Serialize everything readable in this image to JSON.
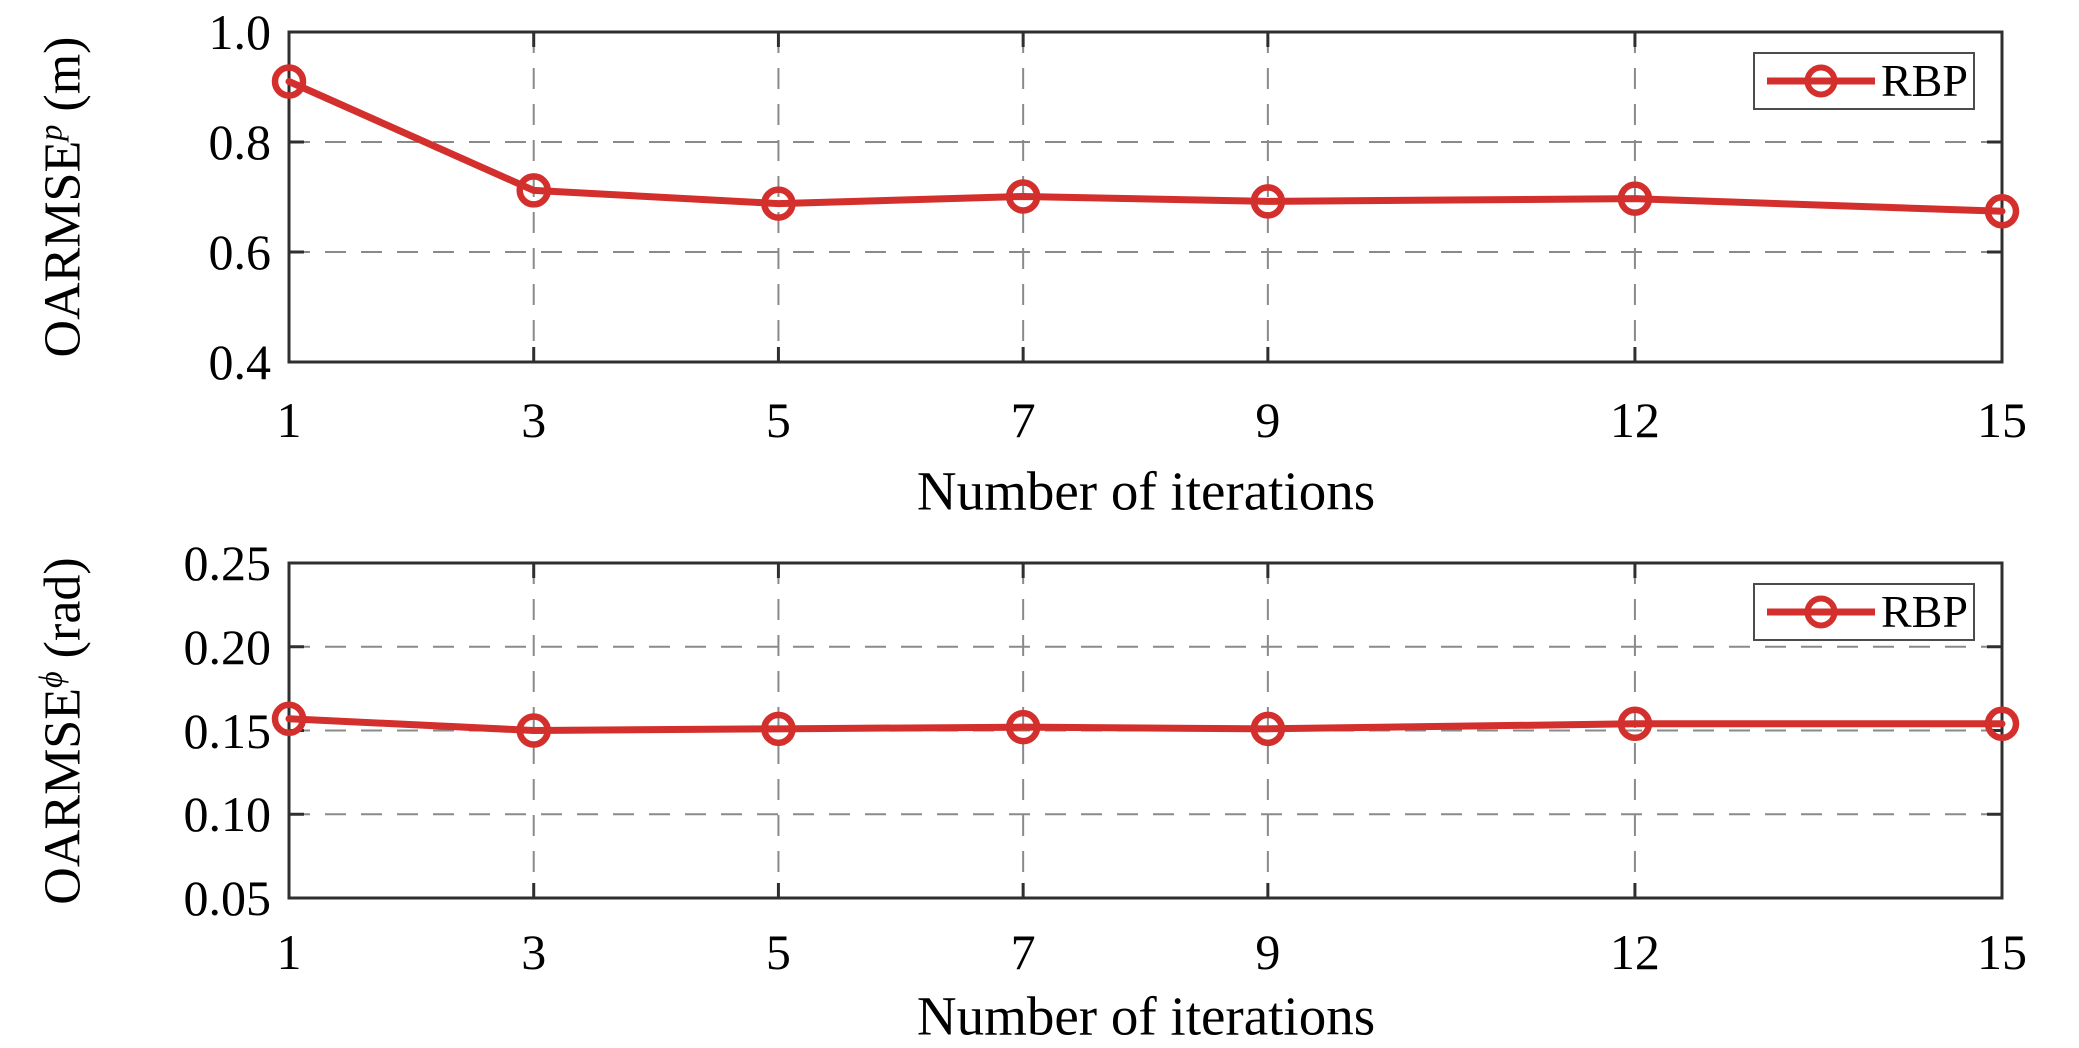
{
  "figure": {
    "background": "#ffffff",
    "axis_color": "#2f2f2f",
    "grid_color": "#8a8a8a",
    "accent_red": "#d32f2c"
  },
  "chart_data": [
    {
      "id": "position-error",
      "type": "line",
      "title": "",
      "xlabel": "Number of iterations",
      "ylabel_base": "OARMSE",
      "ylabel_sup": "p",
      "ylabel_unit": " (m)",
      "xlim": [
        1,
        15
      ],
      "ylim": [
        0.4,
        1.0
      ],
      "xticks": [
        1,
        3,
        5,
        7,
        9,
        12,
        15
      ],
      "xtick_labels": [
        "1",
        "3",
        "5",
        "7",
        "9",
        "12",
        "15"
      ],
      "yticks": [
        1.0,
        0.8,
        0.6,
        0.4
      ],
      "ytick_labels": [
        "1.0",
        "0.8",
        "0.6",
        "0.4"
      ],
      "grid": "dashed",
      "legend_label": "RBP",
      "legend_position": "top-right",
      "x": [
        1,
        3,
        5,
        7,
        9,
        12,
        15
      ],
      "series": [
        {
          "name": "RBP",
          "color": "#d32f2c",
          "marker": "open-circle",
          "values": [
            0.91,
            0.712,
            0.688,
            0.701,
            0.692,
            0.697,
            0.674
          ]
        }
      ]
    },
    {
      "id": "rotation-error",
      "type": "line",
      "title": "",
      "xlabel": "Number of iterations",
      "ylabel_base": "OARMSE",
      "ylabel_sup": "ϕ",
      "ylabel_unit": " (rad)",
      "xlim": [
        1,
        15
      ],
      "ylim": [
        0.05,
        0.25
      ],
      "xticks": [
        1,
        3,
        5,
        7,
        9,
        12,
        15
      ],
      "xtick_labels": [
        "1",
        "3",
        "5",
        "7",
        "9",
        "12",
        "15"
      ],
      "yticks": [
        0.25,
        0.2,
        0.15,
        0.1,
        0.05
      ],
      "ytick_labels": [
        "0.25",
        "0.20",
        "0.15",
        "0.10",
        "0.05"
      ],
      "grid": "dashed",
      "legend_label": "RBP",
      "legend_position": "top-right",
      "x": [
        1,
        3,
        5,
        7,
        9,
        12,
        15
      ],
      "series": [
        {
          "name": "RBP",
          "color": "#d32f2c",
          "marker": "open-circle",
          "values": [
            0.157,
            0.15,
            0.151,
            0.152,
            0.151,
            0.154,
            0.154
          ]
        }
      ]
    }
  ]
}
